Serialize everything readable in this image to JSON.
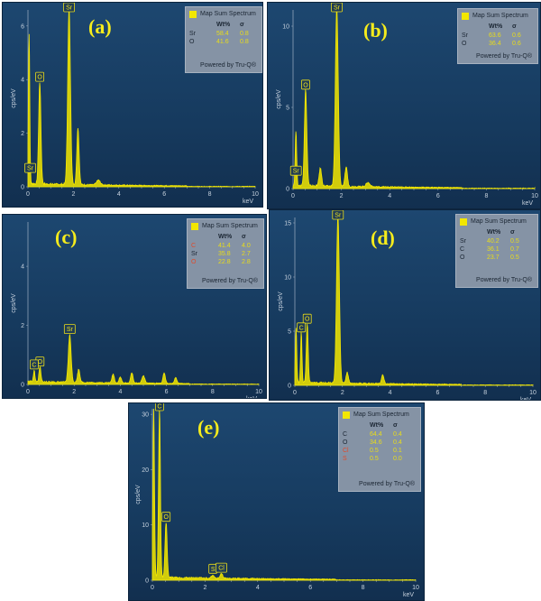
{
  "legend_title": "Map Sum Spectrum",
  "legend_powered": "Powered by Tru-Q®",
  "legend_headers": [
    "Wt%",
    "σ"
  ],
  "xlabel": "keV",
  "ylabel": "cps/eV",
  "colors": {
    "spectrum": "#f3e700",
    "background": "#173c62",
    "element_red": "#e04a2a"
  },
  "chart_data": [
    {
      "panel": "(a)",
      "type": "line",
      "xlabel": "keV",
      "ylabel": "cps/eV",
      "xlim": [
        0,
        10
      ],
      "ylim": [
        0,
        6.6
      ],
      "xticks": [
        0,
        2,
        4,
        6,
        8,
        10
      ],
      "yticks": [
        0,
        2,
        4,
        6
      ],
      "peaks": [
        [
          0.05,
          5.6,
          0.03
        ],
        [
          0.52,
          3.8,
          0.05
        ],
        [
          1.81,
          6.6,
          0.06
        ],
        [
          2.2,
          2.1,
          0.05
        ],
        [
          3.1,
          0.18,
          0.08
        ]
      ],
      "peak_labels": [
        {
          "text": "Sr",
          "x": 1.81,
          "y": 6.6
        },
        {
          "text": "O",
          "x": 0.52,
          "y": 3.8
        },
        {
          "text": "Sr",
          "x": 0.1,
          "y": 0.4
        }
      ],
      "table": [
        {
          "el": "Sr",
          "wt": "58.4",
          "sigma": "0.8",
          "color": "normal"
        },
        {
          "el": "O",
          "wt": "41.6",
          "sigma": "0.8",
          "color": "normal"
        }
      ]
    },
    {
      "panel": "(b)",
      "type": "line",
      "xlabel": "keV",
      "ylabel": "cps/eV",
      "xlim": [
        0,
        10
      ],
      "ylim": [
        0,
        11
      ],
      "xticks": [
        0,
        2,
        4,
        6,
        8,
        10
      ],
      "yticks": [
        0,
        5,
        10
      ],
      "peaks": [
        [
          0.12,
          3.4,
          0.03
        ],
        [
          0.52,
          5.9,
          0.05
        ],
        [
          1.13,
          1.1,
          0.05
        ],
        [
          1.81,
          11.0,
          0.06
        ],
        [
          2.2,
          1.2,
          0.05
        ],
        [
          3.1,
          0.25,
          0.08
        ]
      ],
      "peak_labels": [
        {
          "text": "Sr",
          "x": 1.81,
          "y": 11.0
        },
        {
          "text": "O",
          "x": 0.52,
          "y": 5.9
        },
        {
          "text": "Sr",
          "x": 0.12,
          "y": 0.6
        }
      ],
      "table": [
        {
          "el": "Sr",
          "wt": "63.6",
          "sigma": "0.6",
          "color": "normal"
        },
        {
          "el": "O",
          "wt": "36.4",
          "sigma": "0.6",
          "color": "normal"
        }
      ]
    },
    {
      "panel": "(c)",
      "type": "line",
      "xlabel": "keV",
      "ylabel": "cps/eV",
      "xlim": [
        0,
        10
      ],
      "ylim": [
        0,
        5.5
      ],
      "xticks": [
        0,
        2,
        4,
        6,
        8,
        10
      ],
      "yticks": [
        0,
        2,
        4
      ],
      "peaks": [
        [
          0.27,
          0.4,
          0.03
        ],
        [
          0.52,
          0.5,
          0.04
        ],
        [
          1.81,
          1.6,
          0.06
        ],
        [
          2.2,
          0.45,
          0.05
        ],
        [
          3.69,
          0.3,
          0.05
        ],
        [
          4.0,
          0.2,
          0.05
        ],
        [
          4.5,
          0.35,
          0.05
        ],
        [
          5.0,
          0.25,
          0.06
        ],
        [
          5.9,
          0.35,
          0.05
        ],
        [
          6.4,
          0.2,
          0.05
        ]
      ],
      "peak_labels": [
        {
          "text": "Sr",
          "x": 1.81,
          "y": 1.6
        },
        {
          "text": "O",
          "x": 0.52,
          "y": 0.5
        },
        {
          "text": "C",
          "x": 0.27,
          "y": 0.4
        }
      ],
      "table": [
        {
          "el": "C",
          "wt": "41.4",
          "sigma": "4.0",
          "color": "red"
        },
        {
          "el": "Sr",
          "wt": "35.8",
          "sigma": "2.7",
          "color": "normal"
        },
        {
          "el": "O",
          "wt": "22.8",
          "sigma": "2.8",
          "color": "red"
        }
      ]
    },
    {
      "panel": "(d)",
      "type": "line",
      "xlabel": "keV",
      "ylabel": "cps/eV",
      "xlim": [
        0,
        10
      ],
      "ylim": [
        0,
        15.5
      ],
      "xticks": [
        0,
        2,
        4,
        6,
        8,
        10
      ],
      "yticks": [
        0,
        5,
        10,
        15
      ],
      "peaks": [
        [
          0.05,
          5.0,
          0.03
        ],
        [
          0.27,
          4.6,
          0.03
        ],
        [
          0.52,
          5.4,
          0.04
        ],
        [
          1.81,
          15.5,
          0.06
        ],
        [
          2.2,
          1.0,
          0.05
        ],
        [
          3.69,
          0.8,
          0.05
        ]
      ],
      "peak_labels": [
        {
          "text": "Sr",
          "x": 1.81,
          "y": 15.5
        },
        {
          "text": "O",
          "x": 0.52,
          "y": 5.4
        },
        {
          "text": "C",
          "x": 0.27,
          "y": 4.6
        }
      ],
      "table": [
        {
          "el": "Sr",
          "wt": "40.2",
          "sigma": "0.5",
          "color": "normal"
        },
        {
          "el": "C",
          "wt": "36.1",
          "sigma": "0.7",
          "color": "normal"
        },
        {
          "el": "O",
          "wt": "23.7",
          "sigma": "0.5",
          "color": "normal"
        }
      ]
    },
    {
      "panel": "(e)",
      "type": "line",
      "xlabel": "keV",
      "ylabel": "cps/eV",
      "xlim": [
        0,
        10
      ],
      "ylim": [
        0,
        31
      ],
      "xticks": [
        0,
        2,
        4,
        6,
        8,
        10
      ],
      "yticks": [
        0,
        10,
        20,
        30
      ],
      "peaks": [
        [
          0.05,
          30.5,
          0.03
        ],
        [
          0.27,
          30.5,
          0.035
        ],
        [
          0.52,
          10.0,
          0.04
        ],
        [
          2.3,
          0.6,
          0.05
        ],
        [
          2.62,
          0.8,
          0.05
        ]
      ],
      "peak_labels": [
        {
          "text": "C",
          "x": 0.27,
          "y": 30.5
        },
        {
          "text": "O",
          "x": 0.52,
          "y": 10.0
        },
        {
          "text": "S",
          "x": 2.3,
          "y": 0.6
        },
        {
          "text": "Cl",
          "x": 2.62,
          "y": 0.8
        }
      ],
      "table": [
        {
          "el": "C",
          "wt": "64.4",
          "sigma": "0.4",
          "color": "normal"
        },
        {
          "el": "O",
          "wt": "34.6",
          "sigma": "0.4",
          "color": "normal"
        },
        {
          "el": "Cl",
          "wt": "0.5",
          "sigma": "0.1",
          "color": "red"
        },
        {
          "el": "S",
          "wt": "0.5",
          "sigma": "0.0",
          "color": "red"
        }
      ]
    }
  ]
}
